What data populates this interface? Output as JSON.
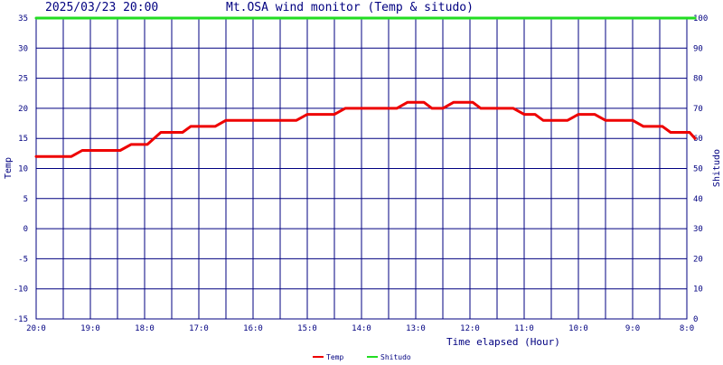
{
  "header": {
    "timestamp": "2025/03/23 20:00",
    "title": "Mt.OSA wind monitor (Temp & situdo)"
  },
  "chart_data": {
    "type": "line",
    "title": "Mt.OSA wind monitor (Temp & situdo)",
    "xlabel": "Time elapsed (Hour)",
    "ylabel_left": "Temp",
    "ylabel_right": "Shitudo",
    "ylim_left": [
      -15,
      35
    ],
    "ylim_right": [
      0,
      100
    ],
    "yticks_left": [
      "35",
      "30",
      "25",
      "20",
      "15",
      "10",
      "5",
      "0",
      "-5",
      "-10",
      "-15"
    ],
    "yticks_right": [
      "100",
      "90",
      "80",
      "70",
      "60",
      "50",
      "40",
      "30",
      "20",
      "10",
      "0"
    ],
    "x_axis": "hours elapsed, decreasing left to right from 20:00 to 8:00",
    "xlim": [
      20,
      8
    ],
    "xticks": [
      {
        "x": 20,
        "label": "20:0"
      },
      {
        "x": 19,
        "label": "19:0"
      },
      {
        "x": 18,
        "label": "18:0"
      },
      {
        "x": 17,
        "label": "17:0"
      },
      {
        "x": 16,
        "label": "16:0"
      },
      {
        "x": 15,
        "label": "15:0"
      },
      {
        "x": 14,
        "label": "14:0"
      },
      {
        "x": 13,
        "label": "13:0"
      },
      {
        "x": 12,
        "label": "12:0"
      },
      {
        "x": 11,
        "label": "11:0"
      },
      {
        "x": 10,
        "label": "10:0"
      },
      {
        "x": 9,
        "label": "9:0"
      },
      {
        "x": 8,
        "label": "8:0"
      }
    ],
    "grid": true,
    "legend_position": "bottom",
    "series": [
      {
        "name": "Temp",
        "axis": "left",
        "color": "#ee0000",
        "points": [
          {
            "x": 20.0,
            "y": 12
          },
          {
            "x": 19.35,
            "y": 12
          },
          {
            "x": 19.15,
            "y": 13
          },
          {
            "x": 18.45,
            "y": 13
          },
          {
            "x": 18.25,
            "y": 14
          },
          {
            "x": 17.95,
            "y": 14
          },
          {
            "x": 17.7,
            "y": 16
          },
          {
            "x": 17.3,
            "y": 16
          },
          {
            "x": 17.15,
            "y": 17
          },
          {
            "x": 16.7,
            "y": 17
          },
          {
            "x": 16.5,
            "y": 18
          },
          {
            "x": 15.2,
            "y": 18
          },
          {
            "x": 15.0,
            "y": 19
          },
          {
            "x": 14.5,
            "y": 19
          },
          {
            "x": 14.3,
            "y": 20
          },
          {
            "x": 13.35,
            "y": 20
          },
          {
            "x": 13.15,
            "y": 21
          },
          {
            "x": 12.85,
            "y": 21
          },
          {
            "x": 12.7,
            "y": 20
          },
          {
            "x": 12.5,
            "y": 20
          },
          {
            "x": 12.3,
            "y": 21
          },
          {
            "x": 11.95,
            "y": 21
          },
          {
            "x": 11.8,
            "y": 20
          },
          {
            "x": 11.2,
            "y": 20
          },
          {
            "x": 11.0,
            "y": 19
          },
          {
            "x": 10.8,
            "y": 19
          },
          {
            "x": 10.65,
            "y": 18
          },
          {
            "x": 10.2,
            "y": 18
          },
          {
            "x": 10.0,
            "y": 19
          },
          {
            "x": 9.7,
            "y": 19
          },
          {
            "x": 9.5,
            "y": 18
          },
          {
            "x": 9.0,
            "y": 18
          },
          {
            "x": 8.8,
            "y": 17
          },
          {
            "x": 8.45,
            "y": 17
          },
          {
            "x": 8.3,
            "y": 16
          },
          {
            "x": 7.95,
            "y": 16
          },
          {
            "x": 7.85,
            "y": 15
          }
        ]
      },
      {
        "name": "Shitudo",
        "axis": "right",
        "color": "#22dd22",
        "points": [
          {
            "x": 20.0,
            "y": 100
          },
          {
            "x": 7.85,
            "y": 100
          }
        ]
      }
    ]
  }
}
